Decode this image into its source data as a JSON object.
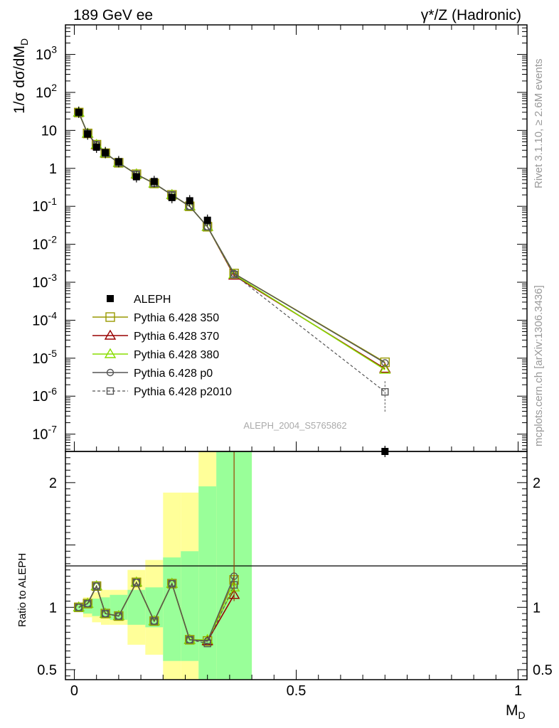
{
  "header": {
    "left_title": "189 GeV ee",
    "right_title": "γ*/Z (Hadronic)"
  },
  "side_labels": {
    "rivet": "Rivet 3.1.10, ≥ 2.6M events",
    "mcplots": "mcplots.cern.ch [arXiv:1306.3436]"
  },
  "analysis_id": "ALEPH_2004_S5765862",
  "colors": {
    "data": "#000000",
    "p350": "#999900",
    "p370": "#990000",
    "p380": "#88dd00",
    "p0": "#555555",
    "p2010": "#555555",
    "band_inner": "#99ff99",
    "band_outer": "#ffff99"
  },
  "chart_data": [
    {
      "type": "line",
      "panel": "main",
      "ylabel": "1/σ  dσ/dM",
      "ylabel_sub": "D",
      "yscale": "log",
      "xlim": [
        -0.02,
        1.02
      ],
      "ylim": [
        3.5e-08,
        6000
      ],
      "ytick_labels": [
        {
          "base": "10",
          "exp": "-7",
          "v": 1e-07
        },
        {
          "base": "10",
          "exp": "-6",
          "v": 1e-06
        },
        {
          "base": "10",
          "exp": "-5",
          "v": 1e-05
        },
        {
          "base": "10",
          "exp": "-4",
          "v": 0.0001
        },
        {
          "base": "10",
          "exp": "-3",
          "v": 0.001
        },
        {
          "base": "10",
          "exp": "-2",
          "v": 0.01
        },
        {
          "base": "10",
          "exp": "-1",
          "v": 0.1
        },
        {
          "base": "1",
          "exp": "",
          "v": 1
        },
        {
          "base": "10",
          "exp": "",
          "v": 10
        },
        {
          "base": "10",
          "exp": "2",
          "v": 100
        },
        {
          "base": "10",
          "exp": "3",
          "v": 1000
        }
      ],
      "legend_placement": "lower-left",
      "data": {
        "name": "ALEPH",
        "x": [
          0.01,
          0.03,
          0.05,
          0.07,
          0.1,
          0.14,
          0.18,
          0.22,
          0.26,
          0.3,
          0.7
        ],
        "y": [
          30,
          8,
          3.6,
          2.6,
          1.5,
          0.6,
          0.45,
          0.17,
          0.14,
          0.043,
          3.5e-08
        ]
      },
      "series": [
        {
          "name": "Pythia 6.428 350",
          "x": [
            0.01,
            0.03,
            0.05,
            0.07,
            0.1,
            0.14,
            0.18,
            0.22,
            0.26,
            0.3,
            0.36,
            0.7
          ],
          "y": [
            29.5,
            8.3,
            4.2,
            2.5,
            1.4,
            0.7,
            0.4,
            0.2,
            0.1,
            0.029,
            0.0017,
            7.8e-06
          ]
        },
        {
          "name": "Pythia 6.428 370",
          "x": [
            0.01,
            0.03,
            0.05,
            0.07,
            0.1,
            0.14,
            0.18,
            0.22,
            0.26,
            0.3,
            0.36,
            0.7
          ],
          "y": [
            29.5,
            8.2,
            4.1,
            2.5,
            1.4,
            0.7,
            0.4,
            0.2,
            0.1,
            0.029,
            0.0015,
            5.3e-06
          ]
        },
        {
          "name": "Pythia 6.428 380",
          "x": [
            0.01,
            0.03,
            0.05,
            0.07,
            0.1,
            0.14,
            0.18,
            0.22,
            0.26,
            0.3,
            0.36,
            0.7
          ],
          "y": [
            29.5,
            8.3,
            4.2,
            2.5,
            1.4,
            0.7,
            0.4,
            0.2,
            0.1,
            0.029,
            0.0016,
            5e-06
          ]
        },
        {
          "name": "Pythia 6.428 p0",
          "x": [
            0.01,
            0.03,
            0.05,
            0.07,
            0.1,
            0.14,
            0.18,
            0.22,
            0.26,
            0.3,
            0.36,
            0.7
          ],
          "y": [
            29.5,
            8.3,
            4.2,
            2.5,
            1.4,
            0.7,
            0.4,
            0.2,
            0.1,
            0.029,
            0.0017,
            7.5e-06
          ]
        },
        {
          "name": "Pythia 6.428 p2010",
          "x": [
            0.01,
            0.03,
            0.05,
            0.07,
            0.1,
            0.14,
            0.18,
            0.22,
            0.26,
            0.3,
            0.36,
            0.7
          ],
          "y": [
            29.5,
            8.3,
            4.2,
            2.5,
            1.4,
            0.7,
            0.4,
            0.2,
            0.1,
            0.029,
            0.0016,
            1.3e-06
          ]
        }
      ]
    },
    {
      "type": "line",
      "panel": "ratio",
      "ylabel": "Ratio to ALEPH",
      "xlabel": "M",
      "xlabel_sub": "D",
      "xlim": [
        -0.02,
        1.02
      ],
      "ylim": [
        0.42,
        2.25
      ],
      "xtick_labels": [
        {
          "label": "0",
          "v": 0
        },
        {
          "label": "0.5",
          "v": 0.5
        },
        {
          "label": "1",
          "v": 1
        }
      ],
      "ytick_labels": [
        {
          "label": "0.5",
          "v": 0.5
        },
        {
          "label": "1",
          "v": 1
        },
        {
          "label": "2",
          "v": 2
        }
      ],
      "band": [
        {
          "x0": 0.0,
          "x1": 0.02,
          "inner": [
            0.98,
            1.02
          ],
          "outer": [
            0.97,
            1.03
          ]
        },
        {
          "x0": 0.02,
          "x1": 0.04,
          "inner": [
            0.95,
            1.05
          ],
          "outer": [
            0.92,
            1.08
          ]
        },
        {
          "x0": 0.04,
          "x1": 0.06,
          "inner": [
            0.93,
            1.07
          ],
          "outer": [
            0.88,
            1.12
          ]
        },
        {
          "x0": 0.06,
          "x1": 0.08,
          "inner": [
            0.92,
            1.08
          ],
          "outer": [
            0.86,
            1.14
          ]
        },
        {
          "x0": 0.08,
          "x1": 0.12,
          "inner": [
            0.9,
            1.1
          ],
          "outer": [
            0.86,
            1.14
          ]
        },
        {
          "x0": 0.12,
          "x1": 0.16,
          "inner": [
            0.86,
            1.14
          ],
          "outer": [
            0.7,
            1.3
          ]
        },
        {
          "x0": 0.16,
          "x1": 0.2,
          "inner": [
            0.84,
            1.16
          ],
          "outer": [
            0.62,
            1.38
          ]
        },
        {
          "x0": 0.2,
          "x1": 0.24,
          "inner": [
            0.57,
            1.4
          ],
          "outer": [
            0.42,
            1.92
          ]
        },
        {
          "x0": 0.24,
          "x1": 0.28,
          "inner": [
            0.57,
            1.45
          ],
          "outer": [
            0.42,
            1.92
          ]
        },
        {
          "x0": 0.28,
          "x1": 0.32,
          "inner": [
            0.42,
            1.97
          ],
          "outer": [
            0.42,
            2.25
          ]
        },
        {
          "x0": 0.32,
          "x1": 0.4,
          "inner": [
            0.42,
            2.25
          ],
          "outer": [
            0.42,
            2.25
          ]
        }
      ],
      "series": [
        {
          "name": "Pythia 6.428 350",
          "x": [
            0.01,
            0.03,
            0.05,
            0.07,
            0.1,
            0.14,
            0.18,
            0.22,
            0.26,
            0.3,
            0.36
          ],
          "y": [
            1.0,
            1.03,
            1.17,
            0.95,
            0.93,
            1.2,
            0.89,
            1.19,
            0.74,
            0.73,
            1.22
          ]
        },
        {
          "name": "Pythia 6.428 370",
          "x": [
            0.01,
            0.03,
            0.05,
            0.07,
            0.1,
            0.14,
            0.18,
            0.22,
            0.26,
            0.3,
            0.36
          ],
          "y": [
            1.0,
            1.03,
            1.17,
            0.95,
            0.93,
            1.2,
            0.89,
            1.19,
            0.74,
            0.73,
            1.1
          ]
        },
        {
          "name": "Pythia 6.428 380",
          "x": [
            0.01,
            0.03,
            0.05,
            0.07,
            0.1,
            0.14,
            0.18,
            0.22,
            0.26,
            0.3,
            0.36
          ],
          "y": [
            1.0,
            1.03,
            1.17,
            0.95,
            0.93,
            1.2,
            0.89,
            1.19,
            0.74,
            0.74,
            1.16
          ]
        },
        {
          "name": "Pythia 6.428 p0",
          "x": [
            0.01,
            0.03,
            0.05,
            0.07,
            0.1,
            0.14,
            0.18,
            0.22,
            0.26,
            0.3,
            0.36
          ],
          "y": [
            1.0,
            1.03,
            1.17,
            0.95,
            0.93,
            1.2,
            0.89,
            1.19,
            0.74,
            0.73,
            1.25
          ]
        },
        {
          "name": "Pythia 6.428 p2010",
          "x": [
            0.01,
            0.03,
            0.05,
            0.07,
            0.1,
            0.14,
            0.18,
            0.22,
            0.26,
            0.3,
            0.36
          ],
          "y": [
            1.0,
            1.03,
            1.17,
            0.95,
            0.93,
            1.2,
            0.89,
            1.19,
            0.74,
            0.71,
            1.18
          ]
        }
      ]
    }
  ]
}
